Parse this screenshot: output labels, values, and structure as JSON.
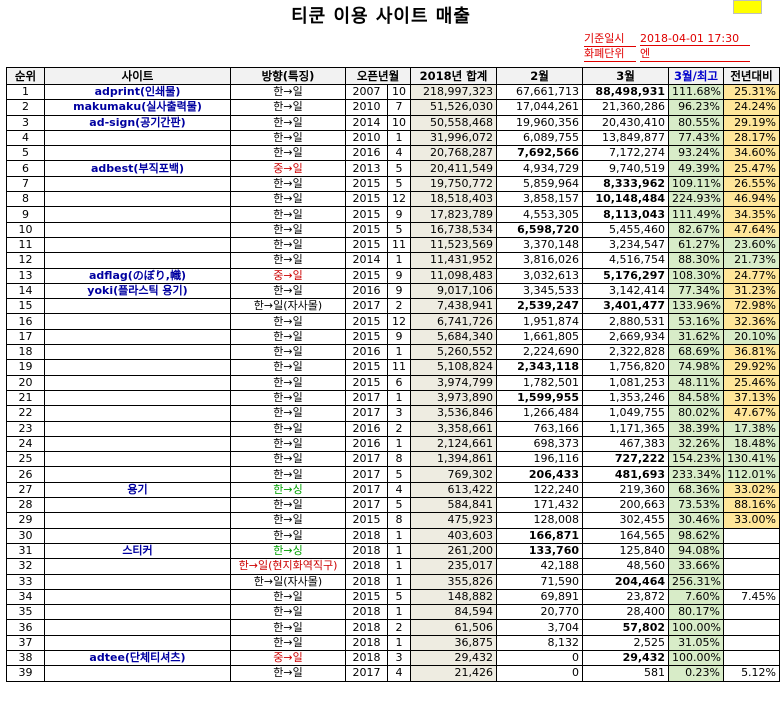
{
  "title": "티쿤 이용 사이트 매출",
  "meta": {
    "base_date_label": "기준일시",
    "base_date_value": "2018-04-01 17:30",
    "currency_label": "화폐단위",
    "currency_value": "엔"
  },
  "headers": {
    "rank": "순위",
    "site": "사이트",
    "direction": "방향(특징)",
    "open": "오픈년월",
    "total": "2018년 합계",
    "feb": "2월",
    "mar": "3월",
    "ratio": "3월/최고",
    "yoy": "전년대비"
  },
  "colors": {
    "green_fill": "#d8ecc8",
    "yellow_fill": "#ffe699",
    "total_fill": "#eeece1",
    "red_text": "#cc0000",
    "green_text": "#00a000",
    "site_text": "#0000a0"
  },
  "rows": [
    {
      "rank": "1",
      "site": "adprint(인쇄물)",
      "dir": "한→일",
      "dc": "",
      "year": "2007",
      "month": "10",
      "total": "218,997,323",
      "feb": "67,661,713",
      "fb": false,
      "mar": "88,498,931",
      "mb": true,
      "ratio": "111.68%",
      "yoy": "25.31%",
      "yc": "y"
    },
    {
      "rank": "2",
      "site": "makumaku(실사출력물)",
      "dir": "한→일",
      "dc": "",
      "year": "2010",
      "month": "7",
      "total": "51,526,030",
      "feb": "17,044,261",
      "fb": false,
      "mar": "21,360,286",
      "mb": false,
      "ratio": "96.23%",
      "yoy": "24.24%",
      "yc": "y"
    },
    {
      "rank": "3",
      "site": "ad-sign(공기간판)",
      "dir": "한→일",
      "dc": "",
      "year": "2014",
      "month": "10",
      "total": "50,558,468",
      "feb": "19,960,356",
      "fb": false,
      "mar": "20,430,410",
      "mb": false,
      "ratio": "80.55%",
      "yoy": "29.19%",
      "yc": "y"
    },
    {
      "rank": "4",
      "site": "",
      "dir": "한→일",
      "dc": "",
      "year": "2010",
      "month": "1",
      "total": "31,996,072",
      "feb": "6,089,755",
      "fb": false,
      "mar": "13,849,877",
      "mb": false,
      "ratio": "77.43%",
      "yoy": "28.17%",
      "yc": "y"
    },
    {
      "rank": "5",
      "site": "",
      "dir": "한→일",
      "dc": "",
      "year": "2016",
      "month": "4",
      "total": "20,768,287",
      "feb": "7,692,566",
      "fb": true,
      "mar": "7,172,274",
      "mb": false,
      "ratio": "93.24%",
      "yoy": "34.60%",
      "yc": "y"
    },
    {
      "rank": "6",
      "site": "adbest(부직포백)",
      "dir": "중→일",
      "dc": "red",
      "year": "2013",
      "month": "5",
      "total": "20,411,549",
      "feb": "4,934,729",
      "fb": false,
      "mar": "9,740,519",
      "mb": false,
      "ratio": "49.39%",
      "yoy": "25.47%",
      "yc": "y"
    },
    {
      "rank": "7",
      "site": "",
      "dir": "한→일",
      "dc": "",
      "year": "2015",
      "month": "5",
      "total": "19,750,772",
      "feb": "5,859,964",
      "fb": false,
      "mar": "8,333,962",
      "mb": true,
      "ratio": "109.11%",
      "yoy": "26.55%",
      "yc": "y"
    },
    {
      "rank": "8",
      "site": "",
      "dir": "한→일",
      "dc": "",
      "year": "2015",
      "month": "12",
      "total": "18,518,403",
      "feb": "3,858,157",
      "fb": false,
      "mar": "10,148,484",
      "mb": true,
      "ratio": "224.93%",
      "yoy": "46.94%",
      "yc": "y"
    },
    {
      "rank": "9",
      "site": "",
      "dir": "한→일",
      "dc": "",
      "year": "2015",
      "month": "9",
      "total": "17,823,789",
      "feb": "4,553,305",
      "fb": false,
      "mar": "8,113,043",
      "mb": true,
      "ratio": "111.49%",
      "yoy": "34.35%",
      "yc": "y"
    },
    {
      "rank": "10",
      "site": "",
      "dir": "한→일",
      "dc": "",
      "year": "2015",
      "month": "5",
      "total": "16,738,534",
      "feb": "6,598,720",
      "fb": true,
      "mar": "5,455,460",
      "mb": false,
      "ratio": "82.67%",
      "yoy": "47.64%",
      "yc": "y"
    },
    {
      "rank": "11",
      "site": "",
      "dir": "한→일",
      "dc": "",
      "year": "2015",
      "month": "11",
      "total": "11,523,569",
      "feb": "3,370,148",
      "fb": false,
      "mar": "3,234,547",
      "mb": false,
      "ratio": "61.27%",
      "yoy": "23.60%",
      "yc": "g"
    },
    {
      "rank": "12",
      "site": "",
      "dir": "한→일",
      "dc": "",
      "year": "2014",
      "month": "1",
      "total": "11,431,952",
      "feb": "3,816,026",
      "fb": false,
      "mar": "4,516,754",
      "mb": false,
      "ratio": "88.30%",
      "yoy": "21.73%",
      "yc": "g"
    },
    {
      "rank": "13",
      "site": "adflag(のぼり,幟)",
      "dir": "중→일",
      "dc": "red",
      "year": "2015",
      "month": "9",
      "total": "11,098,483",
      "feb": "3,032,613",
      "fb": false,
      "mar": "5,176,297",
      "mb": true,
      "ratio": "108.30%",
      "yoy": "24.77%",
      "yc": "y"
    },
    {
      "rank": "14",
      "site": "yoki(플라스틱 용기)",
      "dir": "한→일",
      "dc": "",
      "year": "2016",
      "month": "9",
      "total": "9,017,106",
      "feb": "3,345,533",
      "fb": false,
      "mar": "3,142,414",
      "mb": false,
      "ratio": "77.34%",
      "yoy": "31.23%",
      "yc": "y"
    },
    {
      "rank": "15",
      "site": "",
      "dir": "한→일(자사몰)",
      "dc": "",
      "year": "2017",
      "month": "2",
      "total": "7,438,941",
      "feb": "2,539,247",
      "fb": true,
      "mar": "3,401,477",
      "mb": true,
      "ratio": "133.96%",
      "yoy": "72.98%",
      "yc": "y"
    },
    {
      "rank": "16",
      "site": "",
      "dir": "한→일",
      "dc": "",
      "year": "2015",
      "month": "12",
      "total": "6,741,726",
      "feb": "1,951,874",
      "fb": false,
      "mar": "2,880,531",
      "mb": false,
      "ratio": "53.16%",
      "yoy": "32.36%",
      "yc": "y"
    },
    {
      "rank": "17",
      "site": "",
      "dir": "한→일",
      "dc": "",
      "year": "2015",
      "month": "9",
      "total": "5,684,340",
      "feb": "1,661,805",
      "fb": false,
      "mar": "2,669,934",
      "mb": false,
      "ratio": "31.62%",
      "yoy": "20.10%",
      "yc": "g"
    },
    {
      "rank": "18",
      "site": "",
      "dir": "한→일",
      "dc": "",
      "year": "2016",
      "month": "1",
      "total": "5,260,552",
      "feb": "2,224,690",
      "fb": false,
      "mar": "2,322,828",
      "mb": false,
      "ratio": "68.69%",
      "yoy": "36.81%",
      "yc": "y"
    },
    {
      "rank": "19",
      "site": "",
      "dir": "한→일",
      "dc": "",
      "year": "2015",
      "month": "11",
      "total": "5,108,824",
      "feb": "2,343,118",
      "fb": true,
      "mar": "1,756,820",
      "mb": false,
      "ratio": "74.98%",
      "yoy": "29.92%",
      "yc": "y"
    },
    {
      "rank": "20",
      "site": "",
      "dir": "한→일",
      "dc": "",
      "year": "2015",
      "month": "6",
      "total": "3,974,799",
      "feb": "1,782,501",
      "fb": false,
      "mar": "1,081,253",
      "mb": false,
      "ratio": "48.11%",
      "yoy": "25.46%",
      "yc": "y"
    },
    {
      "rank": "21",
      "site": "",
      "dir": "한→일",
      "dc": "",
      "year": "2017",
      "month": "1",
      "total": "3,973,890",
      "feb": "1,599,955",
      "fb": true,
      "mar": "1,353,246",
      "mb": false,
      "ratio": "84.58%",
      "yoy": "37.13%",
      "yc": "y"
    },
    {
      "rank": "22",
      "site": "",
      "dir": "한→일",
      "dc": "",
      "year": "2017",
      "month": "3",
      "total": "3,536,846",
      "feb": "1,266,484",
      "fb": false,
      "mar": "1,049,755",
      "mb": false,
      "ratio": "80.02%",
      "yoy": "47.67%",
      "yc": "y"
    },
    {
      "rank": "23",
      "site": "",
      "dir": "한→일",
      "dc": "",
      "year": "2016",
      "month": "2",
      "total": "3,358,661",
      "feb": "763,166",
      "fb": false,
      "mar": "1,171,365",
      "mb": false,
      "ratio": "38.39%",
      "yoy": "17.38%",
      "yc": "g"
    },
    {
      "rank": "24",
      "site": "",
      "dir": "한→일",
      "dc": "",
      "year": "2016",
      "month": "1",
      "total": "2,124,661",
      "feb": "698,373",
      "fb": false,
      "mar": "467,383",
      "mb": false,
      "ratio": "32.26%",
      "yoy": "18.48%",
      "yc": "g"
    },
    {
      "rank": "25",
      "site": "",
      "dir": "한→일",
      "dc": "",
      "year": "2017",
      "month": "8",
      "total": "1,394,861",
      "feb": "196,116",
      "fb": false,
      "mar": "727,222",
      "mb": true,
      "ratio": "154.23%",
      "yoy": "130.41%",
      "yc": "g"
    },
    {
      "rank": "26",
      "site": "",
      "dir": "한→일",
      "dc": "",
      "year": "2017",
      "month": "5",
      "total": "769,302",
      "feb": "206,433",
      "fb": true,
      "mar": "481,693",
      "mb": true,
      "ratio": "233.34%",
      "yoy": "112.01%",
      "yc": "g"
    },
    {
      "rank": "27",
      "site": "용기",
      "dir": "한→싱",
      "dc": "green",
      "year": "2017",
      "month": "4",
      "total": "613,422",
      "feb": "122,240",
      "fb": false,
      "mar": "219,360",
      "mb": false,
      "ratio": "68.36%",
      "yoy": "33.02%",
      "yc": "y"
    },
    {
      "rank": "28",
      "site": "",
      "dir": "한→일",
      "dc": "",
      "year": "2017",
      "month": "5",
      "total": "584,841",
      "feb": "171,432",
      "fb": false,
      "mar": "200,663",
      "mb": false,
      "ratio": "73.53%",
      "yoy": "88.16%",
      "yc": "y"
    },
    {
      "rank": "29",
      "site": "",
      "dir": "한→일",
      "dc": "",
      "year": "2015",
      "month": "8",
      "total": "475,923",
      "feb": "128,008",
      "fb": false,
      "mar": "302,455",
      "mb": false,
      "ratio": "30.46%",
      "yoy": "33.00%",
      "yc": "y"
    },
    {
      "rank": "30",
      "site": "",
      "dir": "한→일",
      "dc": "",
      "year": "2018",
      "month": "1",
      "total": "403,603",
      "feb": "166,871",
      "fb": true,
      "mar": "164,565",
      "mb": false,
      "ratio": "98.62%",
      "yoy": "",
      "yc": "none"
    },
    {
      "rank": "31",
      "site": "스티커",
      "dir": "한→싱",
      "dc": "green",
      "year": "2018",
      "month": "1",
      "total": "261,200",
      "feb": "133,760",
      "fb": true,
      "mar": "125,840",
      "mb": false,
      "ratio": "94.08%",
      "yoy": "",
      "yc": "none"
    },
    {
      "rank": "32",
      "site": "",
      "dir": "한→일(현지화역직구)",
      "dc": "red",
      "year": "2018",
      "month": "1",
      "total": "235,017",
      "feb": "42,188",
      "fb": false,
      "mar": "48,560",
      "mb": false,
      "ratio": "33.66%",
      "yoy": "",
      "yc": "none"
    },
    {
      "rank": "33",
      "site": "",
      "dir": "한→일(자사몰)",
      "dc": "",
      "year": "2018",
      "month": "1",
      "total": "355,826",
      "feb": "71,590",
      "fb": false,
      "mar": "204,464",
      "mb": true,
      "ratio": "256.31%",
      "yoy": "",
      "yc": "none"
    },
    {
      "rank": "34",
      "site": "",
      "dir": "한→일",
      "dc": "",
      "year": "2015",
      "month": "5",
      "total": "148,882",
      "feb": "69,891",
      "fb": false,
      "mar": "23,872",
      "mb": false,
      "ratio": "7.60%",
      "yoy": "7.45%",
      "yc": "nofill"
    },
    {
      "rank": "35",
      "site": "",
      "dir": "한→일",
      "dc": "",
      "year": "2018",
      "month": "1",
      "total": "84,594",
      "feb": "20,770",
      "fb": false,
      "mar": "28,400",
      "mb": false,
      "ratio": "80.17%",
      "yoy": "",
      "yc": "nofill"
    },
    {
      "rank": "36",
      "site": "",
      "dir": "한→일",
      "dc": "",
      "year": "2018",
      "month": "2",
      "total": "61,506",
      "feb": "3,704",
      "fb": false,
      "mar": "57,802",
      "mb": true,
      "ratio": "100.00%",
      "yoy": "",
      "yc": "nofill"
    },
    {
      "rank": "37",
      "site": "",
      "dir": "한→일",
      "dc": "",
      "year": "2018",
      "month": "1",
      "total": "36,875",
      "feb": "8,132",
      "fb": false,
      "mar": "2,525",
      "mb": false,
      "ratio": "31.05%",
      "yoy": "",
      "yc": "nofill"
    },
    {
      "rank": "38",
      "site": "adtee(단체티셔츠)",
      "dir": "중→일",
      "dc": "red",
      "year": "2018",
      "month": "3",
      "total": "29,432",
      "feb": "0",
      "fb": false,
      "mar": "29,432",
      "mb": true,
      "ratio": "100.00%",
      "yoy": "",
      "yc": "nofill"
    },
    {
      "rank": "39",
      "site": "",
      "dir": "한→일",
      "dc": "",
      "year": "2017",
      "month": "4",
      "total": "21,426",
      "feb": "0",
      "fb": false,
      "mar": "581",
      "mb": false,
      "ratio": "0.23%",
      "yoy": "5.12%",
      "yc": "nofill"
    }
  ]
}
